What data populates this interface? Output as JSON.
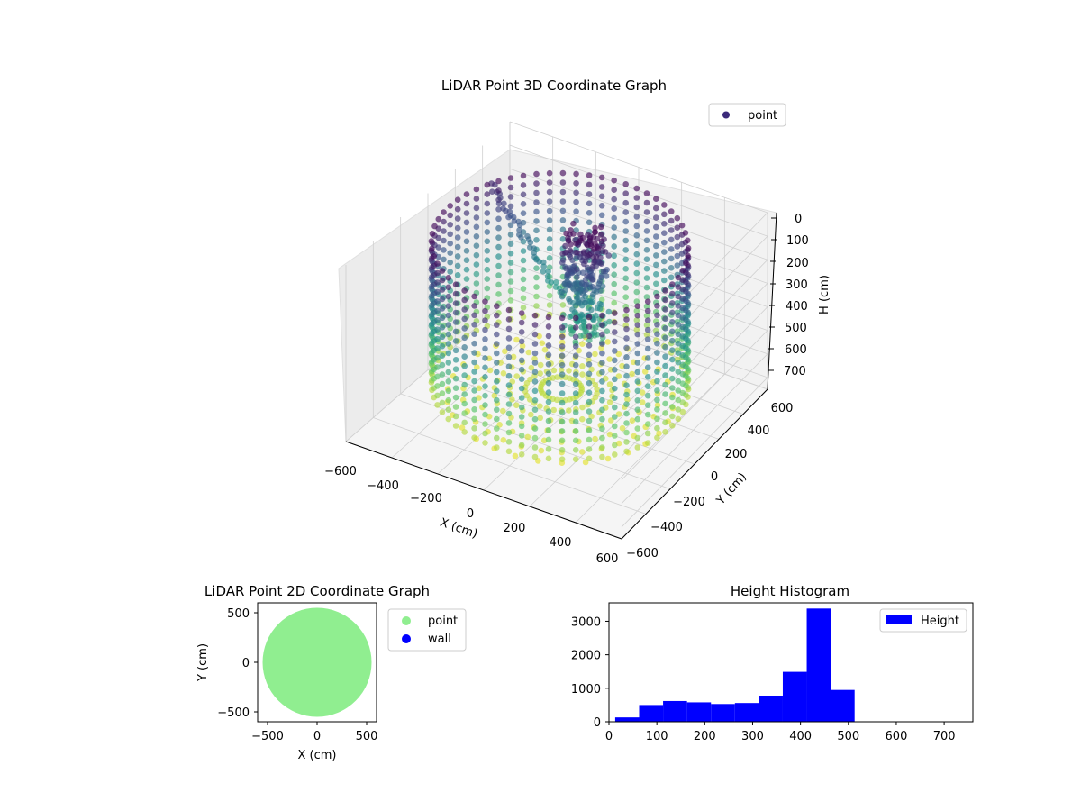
{
  "colors": {
    "viridis": [
      "#440154",
      "#3b528b",
      "#21918c",
      "#5ec962",
      "#fde725"
    ],
    "point_2d": "#90ee90",
    "wall_2d": "#0000ff",
    "histogram": "#0000ff",
    "legend_3d_marker": "#3b2a7a",
    "pane": "#f2f2f2",
    "grid": "#d0d0d0"
  },
  "chart_data": [
    {
      "type": "scatter",
      "title": "LiDAR Point 3D Coordinate Graph",
      "xlabel": "X (cm)",
      "ylabel": "Y (cm)",
      "zlabel": "H (cm)",
      "xlim": [
        -600,
        600
      ],
      "ylim": [
        -600,
        600
      ],
      "zlim": [
        0,
        750
      ],
      "z_inverted": true,
      "x_ticks": [
        "−600",
        "−400",
        "−200",
        "0",
        "200",
        "400",
        "600"
      ],
      "y_ticks": [
        "−600",
        "−400",
        "−200",
        "0",
        "200",
        "400",
        "600"
      ],
      "z_ticks": [
        "0",
        "100",
        "200",
        "300",
        "400",
        "500",
        "600",
        "700"
      ],
      "legend": [
        "point"
      ],
      "legend_position": "top-right",
      "colormap": "viridis",
      "description_of_data": {
        "wall_radius_cm": 500,
        "wall_height_range_cm": [
          0,
          700
        ],
        "central_cluster_xy_cm": [
          50,
          100
        ],
        "central_cluster_height_range_cm": [
          0,
          450
        ]
      },
      "grid": true
    },
    {
      "type": "scatter",
      "title": "LiDAR Point 2D Coordinate Graph",
      "xlabel": "X (cm)",
      "ylabel": "Y (cm)",
      "xlim": [
        -600,
        600
      ],
      "ylim": [
        -600,
        600
      ],
      "x_ticks": [
        "−500",
        "0",
        "500"
      ],
      "y_ticks": [
        "500",
        "0",
        "−500"
      ],
      "series": [
        {
          "name": "point",
          "color": "#90ee90",
          "shape": "filled-disk",
          "radius_cm": 550
        },
        {
          "name": "wall",
          "color": "#0000ff",
          "points": []
        }
      ],
      "legend_position": "outside-right",
      "grid": false
    },
    {
      "type": "bar",
      "title": "Height Histogram",
      "xlabel": "",
      "ylabel": "",
      "xlim": [
        0,
        760
      ],
      "ylim": [
        0,
        3550
      ],
      "x_ticks": [
        "0",
        "100",
        "200",
        "300",
        "400",
        "500",
        "600",
        "700"
      ],
      "y_ticks": [
        "0",
        "1000",
        "2000",
        "3000"
      ],
      "legend": [
        "Height"
      ],
      "legend_position": "top-right",
      "bin_edges": [
        13,
        63,
        113,
        163,
        213,
        263,
        313,
        363,
        413,
        463,
        513,
        563,
        613,
        663,
        713,
        763
      ],
      "values": [
        130,
        500,
        620,
        580,
        530,
        560,
        780,
        1490,
        3380,
        950,
        0,
        0,
        0,
        0,
        0
      ],
      "grid": false
    }
  ]
}
